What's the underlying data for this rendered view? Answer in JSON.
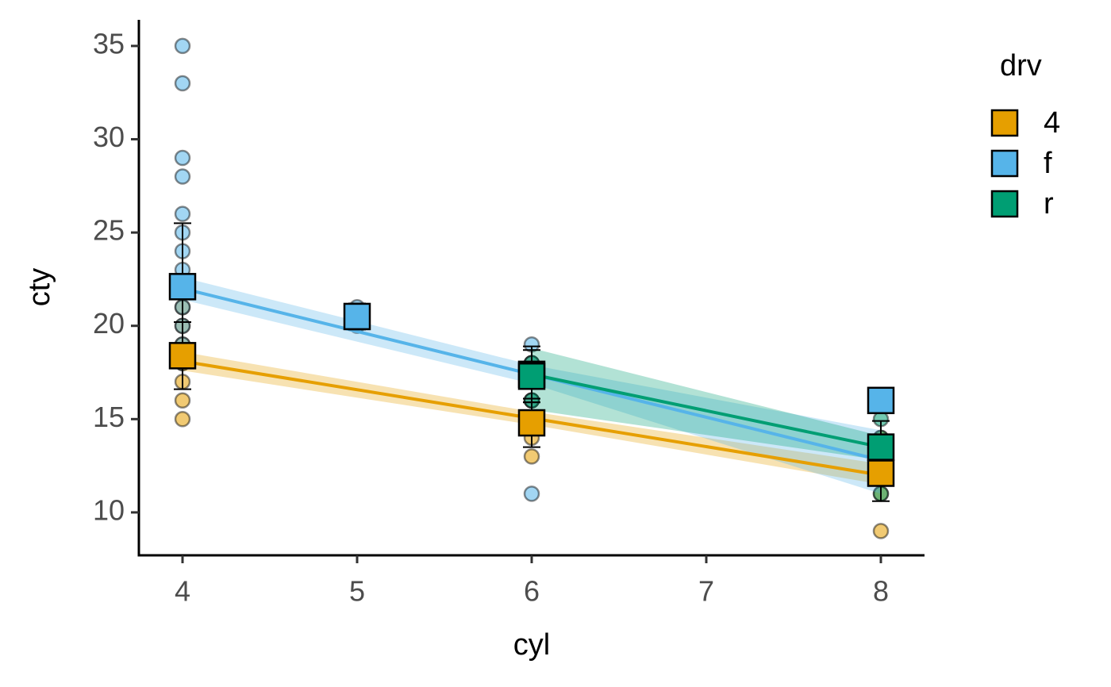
{
  "chart_data": {
    "type": "scatter",
    "x_label": "cyl",
    "y_label": "cty",
    "legend_title": "drv",
    "xlim": [
      3.75,
      8.25
    ],
    "ylim": [
      7.7,
      36.4
    ],
    "xticks": [
      4,
      5,
      6,
      7,
      8
    ],
    "yticks": [
      10,
      15,
      20,
      25,
      30,
      35
    ],
    "series": [
      {
        "name": "4",
        "color": "#E69F00",
        "points": {
          "x": [
            4,
            4,
            4,
            4,
            4,
            4,
            4,
            6,
            6,
            6,
            6,
            6,
            6,
            8,
            8,
            8,
            8,
            8
          ],
          "y": [
            15,
            16,
            17,
            18,
            19,
            20,
            21,
            13,
            14,
            15,
            16,
            17,
            18,
            9,
            11,
            12,
            13,
            14
          ]
        },
        "means": {
          "x": [
            4,
            6,
            8
          ],
          "values": [
            18.4,
            14.8,
            12.1
          ],
          "errors": [
            1.8,
            1.3,
            1.5
          ]
        },
        "fit": {
          "x": [
            4,
            6,
            8
          ],
          "y": [
            18.1,
            15.05,
            12.0
          ],
          "lower": [
            17.6,
            14.7,
            11.5
          ],
          "upper": [
            18.6,
            15.4,
            12.6
          ]
        }
      },
      {
        "name": "f",
        "color": "#56B4E9",
        "points": {
          "x": [
            4,
            4,
            4,
            4,
            4,
            4,
            4,
            4,
            4,
            4,
            4,
            4,
            4,
            5,
            5,
            6,
            6,
            6,
            6,
            6,
            6,
            8
          ],
          "y": [
            18,
            19,
            20,
            21,
            22,
            23,
            24,
            25,
            26,
            28,
            29,
            33,
            35,
            20,
            21,
            11,
            15,
            16,
            17,
            18,
            19,
            16
          ]
        },
        "means": {
          "x": [
            4,
            5,
            6,
            8
          ],
          "values": [
            22.1,
            20.5,
            17.4,
            16
          ],
          "errors": [
            3.4,
            0.7,
            1.5,
            0
          ]
        },
        "fit": {
          "x": [
            4,
            6,
            8
          ],
          "y": [
            22.0,
            17.4,
            12.8
          ],
          "lower": [
            21.4,
            16.9,
            11.0
          ],
          "upper": [
            22.6,
            17.9,
            14.4
          ]
        }
      },
      {
        "name": "r",
        "color": "#009E73",
        "points": {
          "x": [
            6,
            6,
            6,
            6,
            8,
            8,
            8,
            8,
            8
          ],
          "y": [
            15,
            16,
            17,
            18,
            11,
            12,
            13,
            14,
            15
          ]
        },
        "means": {
          "x": [
            6,
            8
          ],
          "values": [
            17.3,
            13.5
          ],
          "errors": [
            1.4,
            1.4
          ]
        },
        "fit": {
          "x": [
            6,
            8
          ],
          "y": [
            17.4,
            13.5
          ],
          "lower": [
            15.5,
            12.8
          ],
          "upper": [
            18.8,
            14.1
          ]
        }
      }
    ]
  }
}
